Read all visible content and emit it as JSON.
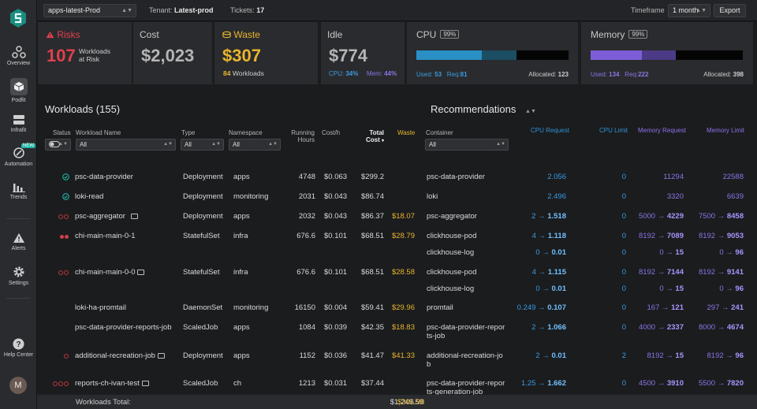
{
  "topbar": {
    "cluster": "apps-latest-Prod",
    "tenant_label": "Tenant:",
    "tenant": "Latest-prod",
    "tickets_label": "Tickets:",
    "tickets": "17",
    "timeframe_label": "Timeframe",
    "timeframe": "1 month",
    "export": "Export"
  },
  "sidebar": {
    "items": [
      {
        "label": "Overview",
        "icon": "overview-icon"
      },
      {
        "label": "Podfit",
        "icon": "cube-icon"
      },
      {
        "label": "Infrafit",
        "icon": "server-icon"
      },
      {
        "label": "Automation",
        "icon": "automation-icon",
        "badge": "NEW"
      },
      {
        "label": "Trends",
        "icon": "bar-chart-icon"
      },
      {
        "label": "Alerts",
        "icon": "warning-icon"
      },
      {
        "label": "Settings",
        "icon": "gear-icon"
      },
      {
        "label": "Help Center",
        "icon": "help-icon"
      }
    ],
    "avatar": "M"
  },
  "cards": {
    "risks": {
      "title": "Risks",
      "value": "107",
      "sub1": "Workloads",
      "sub2": "at Risk"
    },
    "cost": {
      "title": "Cost",
      "value": "$2,023"
    },
    "waste": {
      "title": "Waste",
      "value": "$307",
      "count": "84",
      "count_label": "Workloads"
    },
    "idle": {
      "title": "Idle",
      "value": "$774",
      "cpu_label": "CPU:",
      "cpu": "34%",
      "mem_label": "Mem:",
      "mem": "44%"
    },
    "cpu": {
      "title": "CPU",
      "pct": "99%",
      "used_label": "Used:",
      "used": "53",
      "req_label": "Req:",
      "req": "81",
      "alloc_label": "Allocated:",
      "alloc": "123"
    },
    "memory": {
      "title": "Memory",
      "pct": "99%",
      "used_label": "Used:",
      "used": "134",
      "req_label": "Req:",
      "req": "222",
      "alloc_label": "Allocated:",
      "alloc": "398"
    }
  },
  "colors": {
    "accent_teal": "#1fb5a4",
    "risk_red": "#e0414d",
    "waste_gold": "#e8b52e",
    "cpu_blue": "#2a8fc4",
    "mem_purple": "#7e5ed8"
  },
  "workloads": {
    "title": "Workloads (155)",
    "headers": {
      "status": "Status",
      "name": "Workload Name",
      "type": "Type",
      "namespace": "Namespace",
      "running1": "Running",
      "running2": "Hours",
      "costh": "Cost/h",
      "total1": "Total",
      "total2": "Cost",
      "waste": "Waste",
      "container": "Container"
    },
    "filters": {
      "name": "All",
      "type": "All",
      "namespace": "All",
      "container": "All"
    }
  },
  "recommendations": {
    "title": "Recommendations",
    "headers": {
      "cpu_req": "CPU Request",
      "cpu_lim": "CPU Limit",
      "mem_req": "Memory Request",
      "mem_lim": "Memory Limit"
    }
  },
  "rows": [
    {
      "status": "ok",
      "name": "psc-data-provider",
      "type": "Deployment",
      "ns": "apps",
      "hours": "4748",
      "costh": "$0.063",
      "total": "$299.2",
      "waste": "",
      "containers": [
        {
          "name": "psc-data-provider",
          "cpu_from": "",
          "cpu_to": "2.056",
          "cpu_lim": "0",
          "mr_from": "",
          "mr_to": "11294",
          "ml_from": "",
          "ml_to": "22588"
        }
      ]
    },
    {
      "status": "ok",
      "name": "loki-read",
      "type": "Deployment",
      "ns": "monitoring",
      "hours": "2031",
      "costh": "$0.043",
      "total": "$86.74",
      "waste": "",
      "containers": [
        {
          "name": "loki",
          "cpu_from": "",
          "cpu_to": "2.496",
          "cpu_lim": "0",
          "mr_from": "",
          "mr_to": "3320",
          "ml_from": "",
          "ml_to": "6639"
        }
      ]
    },
    {
      "status": "2o",
      "name": "psc-aggregator",
      "type": "Deployment",
      "ns": "apps",
      "hours": "2032",
      "costh": "$0.043",
      "total": "$86.37",
      "waste": "$18.07",
      "containers": [
        {
          "name": "psc-aggregator",
          "cpu_from": "2",
          "cpu_to": "1.518",
          "cpu_lim": "0",
          "mr_from": "5000",
          "mr_to": "4229",
          "ml_from": "7500",
          "ml_to": "8458"
        }
      ]
    },
    {
      "status": "2f",
      "name": "chi-main-main-0-1",
      "type": "StatefulSet",
      "ns": "infra",
      "hours": "676.6",
      "costh": "$0.101",
      "total": "$68.51",
      "waste": "$28.79",
      "containers": [
        {
          "name": "clickhouse-pod",
          "cpu_from": "4",
          "cpu_to": "1.118",
          "cpu_lim": "0",
          "mr_from": "8192",
          "mr_to": "7089",
          "ml_from": "8192",
          "ml_to": "9053"
        },
        {
          "name": "clickhouse-log",
          "cpu_from": "0",
          "cpu_to": "0.01",
          "cpu_lim": "0",
          "mr_from": "0",
          "mr_to": "15",
          "ml_from": "0",
          "ml_to": "96"
        }
      ]
    },
    {
      "status": "2o",
      "name": "chi-main-main-0-0",
      "type": "StatefulSet",
      "ns": "infra",
      "hours": "676.6",
      "costh": "$0.101",
      "total": "$68.51",
      "waste": "$28.58",
      "containers": [
        {
          "name": "clickhouse-pod",
          "cpu_from": "4",
          "cpu_to": "1.115",
          "cpu_lim": "0",
          "mr_from": "8192",
          "mr_to": "7144",
          "ml_from": "8192",
          "ml_to": "9141"
        },
        {
          "name": "clickhouse-log",
          "cpu_from": "0",
          "cpu_to": "0.01",
          "cpu_lim": "0",
          "mr_from": "0",
          "mr_to": "15",
          "ml_from": "0",
          "ml_to": "96"
        }
      ]
    },
    {
      "status": "",
      "name": "loki-ha-promtail",
      "type": "DaemonSet",
      "ns": "monitoring",
      "hours": "16150",
      "costh": "$0.004",
      "total": "$59.41",
      "waste": "$29.96",
      "containers": [
        {
          "name": "promtail",
          "cpu_from": "0.249",
          "cpu_to": "0.107",
          "cpu_lim": "0",
          "mr_from": "167",
          "mr_to": "121",
          "ml_from": "297",
          "ml_to": "241"
        }
      ]
    },
    {
      "status": "",
      "name": "psc-data-provider-reports-job",
      "type": "ScaledJob",
      "ns": "apps",
      "hours": "1084",
      "costh": "$0.039",
      "total": "$42.35",
      "waste": "$18.83",
      "containers": [
        {
          "name": "psc-data-provider-repor",
          "name2": "ts-job",
          "cpu_from": "2",
          "cpu_to": "1.066",
          "cpu_lim": "0",
          "mr_from": "4000",
          "mr_to": "2337",
          "ml_from": "8000",
          "ml_to": "4674"
        }
      ]
    },
    {
      "status": "1o",
      "name": "additional-recreation-job",
      "type": "Deployment",
      "ns": "apps",
      "hours": "1152",
      "costh": "$0.036",
      "total": "$41.47",
      "waste": "$41.33",
      "containers": [
        {
          "name": "additional-recreation-jo",
          "name2": "b",
          "cpu_from": "2",
          "cpu_to": "0.01",
          "cpu_lim": "2",
          "mr_from": "8192",
          "mr_to": "15",
          "ml_from": "8192",
          "ml_to": "96"
        }
      ]
    },
    {
      "status": "3o",
      "name": "reports-ch-ivan-test",
      "type": "ScaledJob",
      "ns": "ch",
      "hours": "1213",
      "costh": "$0.031",
      "total": "$37.44",
      "waste": "",
      "containers": [
        {
          "name": "psc-data-provider-repor",
          "name2": "ts-generation-job",
          "cpu_from": "1.25",
          "cpu_to": "1.662",
          "cpu_lim": "0",
          "mr_from": "4500",
          "mr_to": "3910",
          "ml_from": "5500",
          "ml_to": "7820"
        }
      ]
    }
  ],
  "footer": {
    "label": "Workloads Total:",
    "total": "$1,249.59",
    "waste": "$306.98"
  }
}
